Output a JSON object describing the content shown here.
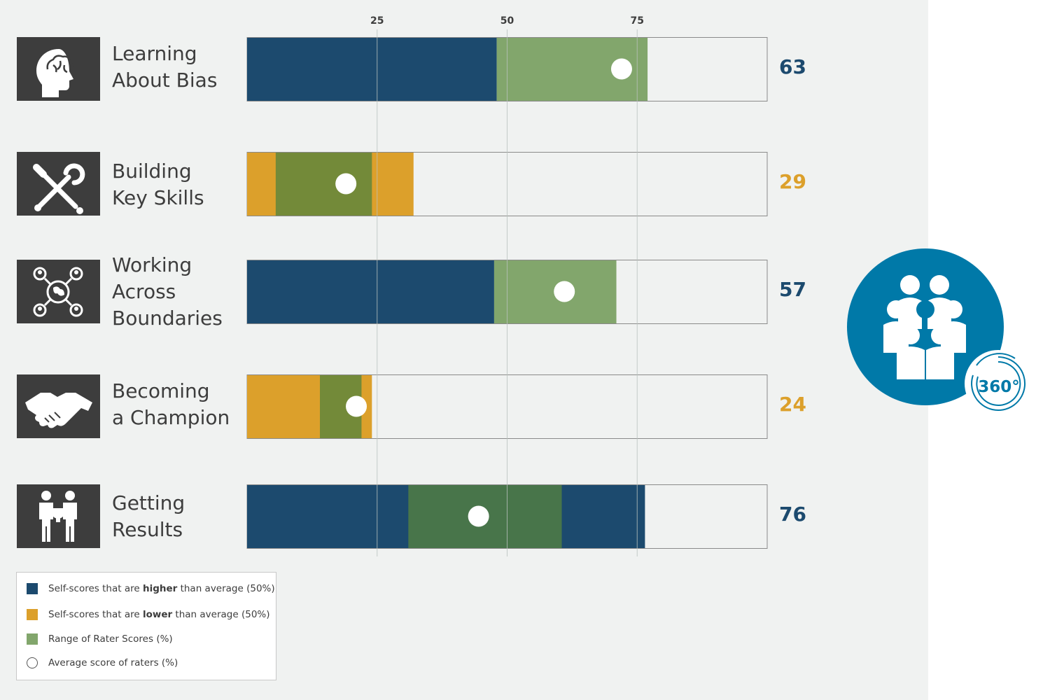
{
  "chart_data": {
    "type": "bar",
    "subtype": "range-bar",
    "x_ticks": [
      25,
      50,
      75
    ],
    "xlim": [
      0,
      100
    ],
    "grid": true,
    "categories": [
      {
        "label_lines": [
          "Learning",
          "About Bias"
        ],
        "icon": "brain-head-icon",
        "self_score": 48,
        "self_type": "higher",
        "rater_range": [
          48,
          77
        ],
        "rater_avg": 72,
        "score": "63",
        "score_type": "higher"
      },
      {
        "label_lines": [
          "Building",
          "Key Skills"
        ],
        "icon": "tools-icon",
        "self_score": 32,
        "self_type": "lower",
        "rater_range": [
          5.5,
          24
        ],
        "rater_avg": 19,
        "score": "29",
        "score_type": "lower"
      },
      {
        "label_lines": [
          "Working",
          "Across",
          "Boundaries"
        ],
        "icon": "network-globe-icon",
        "self_score": 47.5,
        "self_type": "higher",
        "rater_range": [
          47.5,
          71
        ],
        "rater_avg": 61,
        "score": "57",
        "score_type": "higher"
      },
      {
        "label_lines": [
          "Becoming",
          "a Champion"
        ],
        "icon": "handshake-icon",
        "self_score": 24,
        "self_type": "lower",
        "rater_range": [
          14,
          22
        ],
        "rater_avg": 21,
        "score": "24",
        "score_type": "lower"
      },
      {
        "label_lines": [
          "Getting",
          "Results"
        ],
        "icon": "trophy-team-icon",
        "self_score": 76.5,
        "self_type": "higher",
        "rater_range": [
          31,
          60.5
        ],
        "rater_avg": 44.5,
        "score": "76",
        "score_type": "higher"
      }
    ],
    "legend": [
      {
        "type": "swatch",
        "color": "#1c4a6e",
        "pre": "Self-scores that are ",
        "bold": "higher",
        "post": " than average (50%)"
      },
      {
        "type": "swatch",
        "color": "#dca02b",
        "pre": "Self-scores that are ",
        "bold": "lower",
        "post": " than average (50%)"
      },
      {
        "type": "swatch",
        "color": "#82a66c",
        "pre": "Range of Rater Scores (%)",
        "bold": "",
        "post": ""
      },
      {
        "type": "circle",
        "color": "#ffffff",
        "pre": "Average score of raters (%)",
        "bold": "",
        "post": ""
      }
    ],
    "legend_position": "bottom-left"
  },
  "colors": {
    "higher": "#1c4a6e",
    "lower": "#dca02b",
    "range_light": "#82a66c",
    "range_on_higher": "#48754a",
    "range_on_lower": "#738a39",
    "icon_bg": "#3d3d3d",
    "badge": "#0079a8"
  },
  "badge": {
    "icon": "360-people-icon",
    "text": "360°"
  }
}
